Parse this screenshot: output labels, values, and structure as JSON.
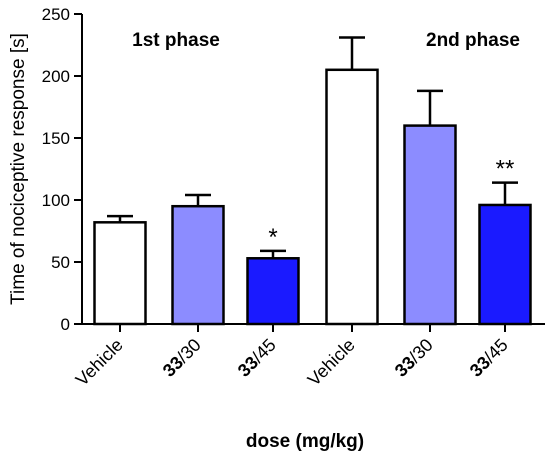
{
  "chart_data": {
    "type": "bar",
    "title": "",
    "xlabel": "dose (mg/kg)",
    "ylabel": "Time of nociceptive response [s]",
    "ylim": [
      0,
      250
    ],
    "yticks": [
      "0",
      "50",
      "100",
      "150",
      "200",
      "250"
    ],
    "grid": false,
    "legend": "none",
    "groups": [
      {
        "label": "1st phase"
      },
      {
        "label": "2nd phase"
      }
    ],
    "bars": [
      {
        "phase": "1st phase",
        "label_main": "Vehicle",
        "label_suffix": "",
        "value": 82,
        "error": 5,
        "significance": "",
        "fill": "#ffffff"
      },
      {
        "phase": "1st phase",
        "label_main": "33",
        "label_suffix": "/30",
        "value": 95,
        "error": 9,
        "significance": "",
        "fill": "#8c8cff"
      },
      {
        "phase": "1st phase",
        "label_main": "33",
        "label_suffix": "/45",
        "value": 53,
        "error": 6,
        "significance": "*",
        "fill": "#1a1aff"
      },
      {
        "phase": "2nd phase",
        "label_main": "Vehicle",
        "label_suffix": "",
        "value": 205,
        "error": 26,
        "significance": "",
        "fill": "#ffffff"
      },
      {
        "phase": "2nd phase",
        "label_main": "33",
        "label_suffix": "/30",
        "value": 160,
        "error": 28,
        "significance": "",
        "fill": "#8c8cff"
      },
      {
        "phase": "2nd phase",
        "label_main": "33",
        "label_suffix": "/45",
        "value": 96,
        "error": 18,
        "significance": "**",
        "fill": "#1a1aff"
      }
    ]
  }
}
